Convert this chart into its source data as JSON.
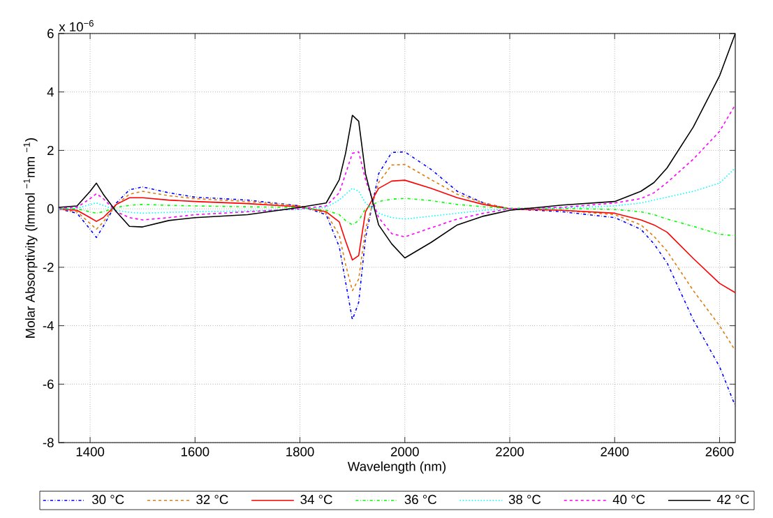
{
  "chart_data": {
    "type": "line",
    "xlabel": "Wavelength (nm)",
    "ylabel": "Molar Absorptivity (lmmol $^{−1}$mm $^{−1}$)",
    "annotations": [
      "x 10$^{−6}$"
    ],
    "x": [
      1340,
      1375,
      1400,
      1412,
      1425,
      1450,
      1475,
      1500,
      1550,
      1600,
      1700,
      1800,
      1850,
      1875,
      1887,
      1900,
      1912,
      1925,
      1950,
      1975,
      2000,
      2050,
      2100,
      2150,
      2200,
      2300,
      2400,
      2450,
      2475,
      2500,
      2550,
      2600,
      2630
    ],
    "series": [
      {
        "name": "30 °C",
        "color": "#0000ff",
        "line_style": "dashdot",
        "values": [
          0,
          -0.15,
          -0.7,
          -0.98,
          -0.6,
          0.2,
          0.65,
          0.75,
          0.55,
          0.4,
          0.3,
          0.1,
          -0.2,
          -1.3,
          -2.5,
          -3.8,
          -3.2,
          -1.0,
          1.2,
          1.93,
          1.95,
          1.35,
          0.6,
          0.2,
          0.0,
          -0.1,
          -0.3,
          -0.7,
          -1.2,
          -1.85,
          -3.8,
          -5.4,
          -6.75
        ]
      },
      {
        "name": "32 °C",
        "color": "#dd7d10",
        "line_style": "dashed",
        "values": [
          0,
          -0.1,
          -0.5,
          -0.7,
          -0.45,
          0.15,
          0.5,
          0.6,
          0.45,
          0.35,
          0.25,
          0.1,
          -0.15,
          -0.9,
          -1.9,
          -2.8,
          -2.4,
          -0.7,
          0.9,
          1.5,
          1.52,
          1.0,
          0.5,
          0.2,
          0.0,
          -0.05,
          -0.2,
          -0.55,
          -0.94,
          -1.45,
          -2.8,
          -4.0,
          -4.85
        ]
      },
      {
        "name": "34 °C",
        "color": "#ff0000",
        "line_style": "solid",
        "values": [
          0,
          -0.05,
          -0.3,
          -0.43,
          -0.3,
          0.15,
          0.38,
          0.38,
          0.3,
          0.25,
          0.18,
          0.07,
          -0.1,
          -0.45,
          -1.1,
          -1.75,
          -1.6,
          -0.1,
          0.7,
          0.95,
          0.98,
          0.7,
          0.38,
          0.15,
          0.0,
          -0.05,
          -0.15,
          -0.38,
          -0.55,
          -0.8,
          -1.7,
          -2.55,
          -2.87
        ]
      },
      {
        "name": "36 °C",
        "color": "#00ff00",
        "line_style": "dashdot",
        "values": [
          0,
          0,
          -0.1,
          -0.15,
          -0.1,
          0.05,
          0.12,
          0.15,
          0.12,
          0.1,
          0.07,
          0.05,
          -0.05,
          -0.2,
          -0.4,
          -0.55,
          -0.4,
          0.0,
          0.25,
          0.33,
          0.36,
          0.28,
          0.15,
          0.07,
          0.02,
          0.01,
          -0.02,
          -0.1,
          -0.2,
          -0.35,
          -0.6,
          -0.87,
          -0.92
        ]
      },
      {
        "name": "38 °C",
        "color": "#00ffff",
        "line_style": "dotted",
        "values": [
          0,
          0.02,
          0.15,
          0.2,
          0.12,
          -0.05,
          -0.12,
          -0.15,
          -0.12,
          -0.1,
          -0.07,
          -0.02,
          0.05,
          0.3,
          0.5,
          0.7,
          0.6,
          0.2,
          -0.15,
          -0.3,
          -0.35,
          -0.25,
          -0.15,
          -0.05,
          0.0,
          0.03,
          0.1,
          0.2,
          0.3,
          0.4,
          0.6,
          0.88,
          1.4
        ]
      },
      {
        "name": "40 °C",
        "color": "#ff00ff",
        "line_style": "dashed",
        "values": [
          0.02,
          0.05,
          0.35,
          0.52,
          0.35,
          -0.1,
          -0.3,
          -0.38,
          -0.3,
          -0.2,
          -0.1,
          0.0,
          0.1,
          0.55,
          1.2,
          1.9,
          1.95,
          1.0,
          -0.3,
          -0.85,
          -0.96,
          -0.65,
          -0.35,
          -0.15,
          0,
          0.05,
          0.2,
          0.35,
          0.55,
          0.9,
          1.7,
          2.65,
          3.56
        ]
      },
      {
        "name": "42 °C",
        "color": "#000000",
        "line_style": "solid",
        "values": [
          0.05,
          0.1,
          0.6,
          0.88,
          0.5,
          -0.1,
          -0.6,
          -0.62,
          -0.4,
          -0.3,
          -0.2,
          0.05,
          0.2,
          1.0,
          1.9,
          3.2,
          3.0,
          1.2,
          -0.55,
          -1.2,
          -1.68,
          -1.15,
          -0.55,
          -0.25,
          -0.05,
          0.13,
          0.25,
          0.6,
          0.9,
          1.4,
          2.8,
          4.55,
          6.0
        ]
      }
    ],
    "xlim": [
      1340,
      2630
    ],
    "ylim": [
      -8,
      6
    ],
    "xticks": [
      1400,
      1600,
      1800,
      2000,
      2200,
      2400,
      2600
    ],
    "yticks": [
      -8,
      -6,
      -4,
      -2,
      0,
      2,
      4,
      6
    ],
    "grid": true,
    "legend": "bottom"
  }
}
